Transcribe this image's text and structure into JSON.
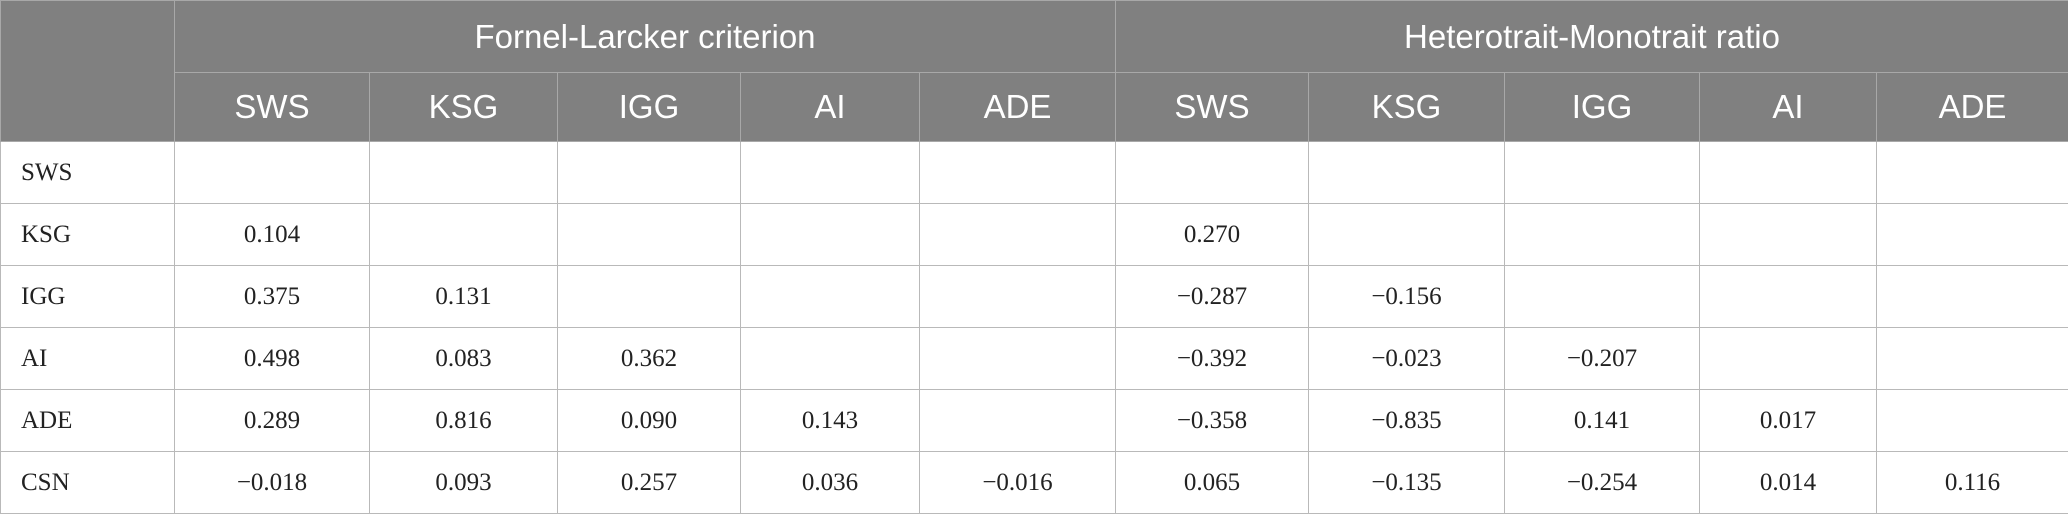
{
  "table": {
    "groups": [
      {
        "title": "Fornel-Larcker criterion",
        "columns": [
          "SWS",
          "KSG",
          "IGG",
          "AI",
          "ADE"
        ]
      },
      {
        "title": "Heterotrait-Monotrait ratio",
        "columns": [
          "SWS",
          "KSG",
          "IGG",
          "AI",
          "ADE"
        ]
      }
    ],
    "rows": [
      {
        "label": "SWS",
        "cells": [
          null,
          null,
          null,
          null,
          null,
          null,
          null,
          null,
          null,
          null
        ]
      },
      {
        "label": "KSG",
        "cells": [
          "0.104",
          null,
          null,
          null,
          null,
          "0.270",
          null,
          null,
          null,
          null
        ]
      },
      {
        "label": "IGG",
        "cells": [
          "0.375",
          "0.131",
          null,
          null,
          null,
          "−0.287",
          "−0.156",
          null,
          null,
          null
        ]
      },
      {
        "label": "AI",
        "cells": [
          "0.498",
          "0.083",
          "0.362",
          null,
          null,
          "−0.392",
          "−0.023",
          "−0.207",
          null,
          null
        ]
      },
      {
        "label": "ADE",
        "cells": [
          "0.289",
          "0.816",
          "0.090",
          "0.143",
          null,
          "−0.358",
          "−0.835",
          "0.141",
          "0.017",
          null
        ]
      },
      {
        "label": "CSN",
        "cells": [
          "−0.018",
          "0.093",
          "0.257",
          "0.036",
          "−0.016",
          "0.065",
          "−0.135",
          "−0.254",
          "0.014",
          "0.116"
        ]
      }
    ]
  }
}
